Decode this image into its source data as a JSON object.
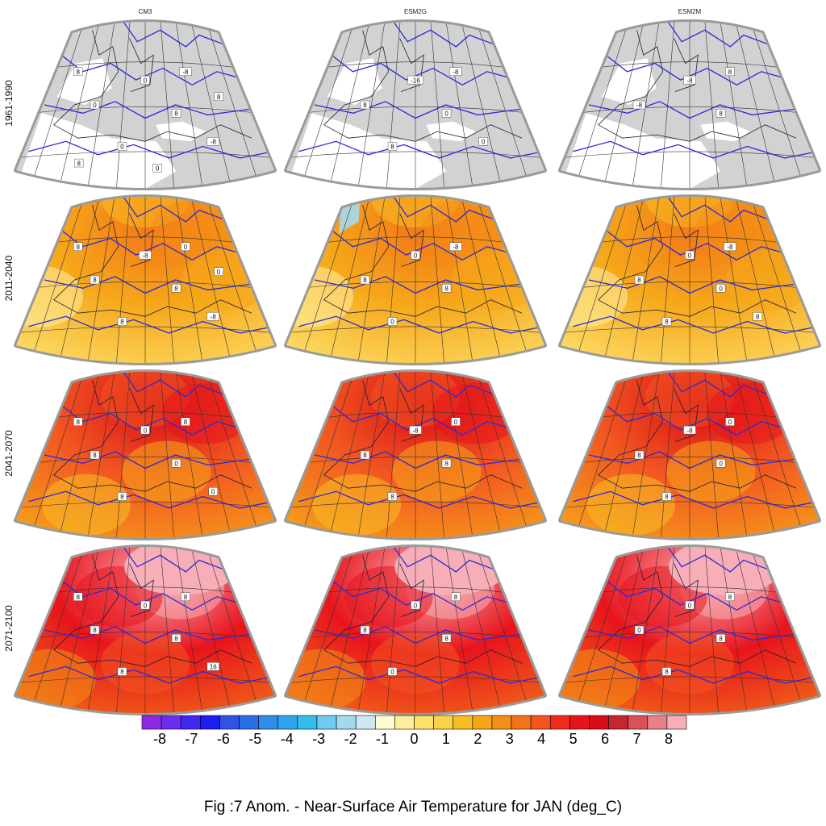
{
  "figure": {
    "caption": "Fig :7  Anom.  - Near-Surface Air Temperature for JAN (deg_C)",
    "columns": [
      "CM3",
      "ESM2G",
      "ESM2M"
    ],
    "rows": [
      "1961-1990",
      "2011-2040",
      "2041-2070",
      "2071-2100"
    ],
    "panel_style": {
      "1961-1990": "contours over land mask (grey land, white sea), no anomaly shading",
      "2011-2040": "anomaly shading",
      "2041-2070": "anomaly shading",
      "2071-2100": "anomaly shading"
    },
    "contour_labels": {
      "1961-1990": {
        "CM3": [
          "0",
          "-8",
          "0",
          "8",
          "0",
          "-8",
          "8",
          "8",
          "0",
          "8"
        ],
        "ESM2G": [
          "-16",
          "-8",
          "8",
          "0",
          "8",
          "0"
        ],
        "ESM2M": [
          "-8",
          "8",
          "-8",
          "8"
        ]
      },
      "2011-2040": {
        "CM3": [
          "-8",
          "0",
          "8",
          "8",
          "8",
          "-8",
          "8",
          "0"
        ],
        "ESM2G": [
          "0",
          "-8",
          "8",
          "8",
          "0"
        ],
        "ESM2M": [
          "0",
          "-8",
          "8",
          "0",
          "8",
          "8"
        ]
      },
      "2041-2070": {
        "CM3": [
          "0",
          "8",
          "8",
          "0",
          "8",
          "0",
          "8"
        ],
        "ESM2G": [
          "-8",
          "0",
          "8",
          "8",
          "8"
        ],
        "ESM2M": [
          "-8",
          "0",
          "8",
          "0",
          "8"
        ]
      },
      "2071-2100": {
        "CM3": [
          "0",
          "8",
          "8",
          "8",
          "8",
          "16",
          "8"
        ],
        "ESM2G": [
          "0",
          "8",
          "8",
          "8",
          "0"
        ],
        "ESM2M": [
          "0",
          "8",
          "0",
          "8",
          "8"
        ]
      }
    },
    "colorbar": {
      "ticks": [
        "-8",
        "-7",
        "-6",
        "-5",
        "-4",
        "-3",
        "-2",
        "-1",
        "0",
        "1",
        "2",
        "3",
        "4",
        "5",
        "6",
        "7",
        "8"
      ],
      "colors": [
        "#8e2be2",
        "#6c2df0",
        "#4027f0",
        "#1c1cf5",
        "#2f53e6",
        "#2b6fe6",
        "#2f8de8",
        "#2ea5ec",
        "#35bde9",
        "#6fcbef",
        "#a4d8ef",
        "#cfe7f1",
        "#fffbd0",
        "#ffee9e",
        "#fde26f",
        "#fbd147",
        "#f8bd24",
        "#f6a719",
        "#f48e15",
        "#f27418",
        "#f25521",
        "#ee2c1c",
        "#e8141c",
        "#d70c18",
        "#c6262e",
        "#d85258",
        "#e88088",
        "#f8aeb7"
      ]
    },
    "colors": {
      "land_mask": "#d2d2d2",
      "ocean": "#ffffff",
      "contour": "#2a2ad8",
      "coast": "#1c1c3c",
      "grid": "#333333",
      "frame": "#9a9a9a"
    }
  }
}
